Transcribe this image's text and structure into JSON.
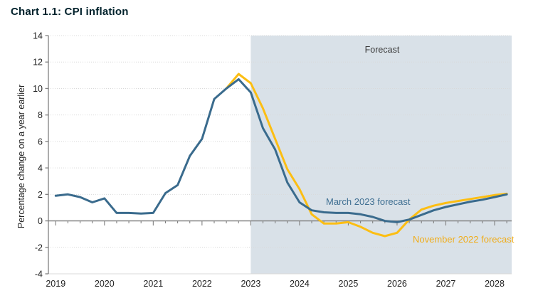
{
  "page": {
    "title": "Chart 1.1: CPI inflation"
  },
  "colors": {
    "title_text": "#00212b",
    "march_line": "#3a6b8d",
    "march_text": "#3f6f92",
    "november_line": "#fcbe13",
    "november_text": "#f0ad1b",
    "forecast_shade": "#d9e1e8",
    "forecast_text": "#3b3b3b",
    "axis": "#7f7f7f",
    "gridline": "#d9d9d9",
    "tick_text": "#1f1f1f"
  },
  "chart_data": {
    "type": "line",
    "title": "Chart 1.1: CPI inflation",
    "xlabel": "",
    "ylabel": "Percentage change on a year earlier",
    "ylim": [
      -4,
      14
    ],
    "ytick_step": 2,
    "ytick_labels": [
      "14",
      "12",
      "10",
      "8",
      "6",
      "4",
      "2",
      "0",
      "-2",
      "-4"
    ],
    "xlim": [
      2018.85,
      2028.35
    ],
    "xtick_labels": [
      "2019",
      "2020",
      "2021",
      "2022",
      "2023",
      "2024",
      "2025",
      "2026",
      "2027",
      "2028"
    ],
    "x_start": 2019.0,
    "x_step": 0.25,
    "x_unit": "quarterly",
    "grid": "horizontal-dotted",
    "legend_position": "inline-annotations",
    "forecast_region": {
      "label": "Forecast",
      "x_from": 2023.0,
      "x_to": 2028.35
    },
    "series": [
      {
        "name": "November 2022 forecast",
        "color": "#fcbe13",
        "values": [
          null,
          null,
          null,
          null,
          null,
          null,
          null,
          null,
          null,
          null,
          null,
          null,
          null,
          null,
          10.0,
          11.1,
          10.4,
          8.5,
          6.2,
          3.9,
          2.4,
          0.5,
          -0.2,
          -0.2,
          -0.1,
          -0.45,
          -0.9,
          -1.15,
          -0.9,
          0.1,
          0.85,
          1.15,
          1.35,
          1.5,
          1.65,
          1.8,
          1.95,
          2.05
        ]
      },
      {
        "name": "March 2023 forecast",
        "color": "#3a6b8d",
        "values": [
          1.9,
          2.0,
          1.8,
          1.4,
          1.7,
          0.6,
          0.6,
          0.55,
          0.6,
          2.1,
          2.7,
          4.9,
          6.2,
          9.2,
          10.0,
          10.7,
          9.7,
          7.0,
          5.4,
          2.9,
          1.4,
          0.8,
          0.65,
          0.6,
          0.6,
          0.5,
          0.3,
          0.0,
          -0.1,
          0.1,
          0.45,
          0.8,
          1.05,
          1.25,
          1.45,
          1.6,
          1.8,
          2.0
        ]
      }
    ],
    "annotations": [
      {
        "text": "Forecast",
        "x": 2025.9,
        "y": 12.8
      },
      {
        "text": "March 2023 forecast",
        "x": 2024.55,
        "y": 1.55
      },
      {
        "text": "November 2022 forecast",
        "x": 2026.35,
        "y": -1.4
      }
    ]
  }
}
